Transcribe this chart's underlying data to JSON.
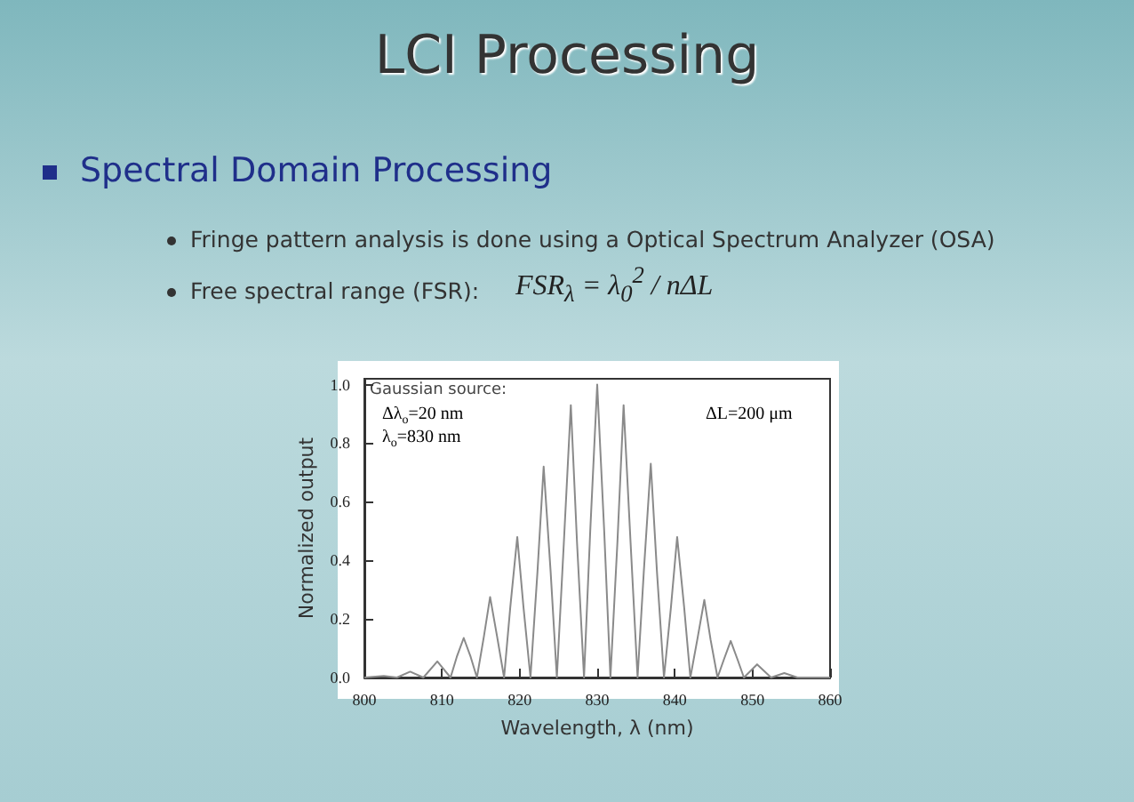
{
  "chart_data": {
    "type": "line",
    "title": "LCI Processing",
    "subtitle": "Spectral Domain Processing",
    "annotations": [
      "Fringe pattern analysis is done using a Optical Spectrum Analyzer (OSA)",
      "Free spectral range (FSR):",
      "FSR$_{λ}$ = λ$_{0}$$^{2}$ / nΔL",
      "Gaussian source:",
      "Δλ$_{o}$=20 nm",
      "λ$_{o}$=830 nm",
      "ΔL=200 μm"
    ],
    "xlabel": "Wavelength, λ (nm)",
    "ylabel": "Normalized output",
    "xlim": [
      800,
      860
    ],
    "xticks": [
      800,
      810,
      820,
      830,
      840,
      850,
      860
    ],
    "ylim": [
      0,
      1.02
    ],
    "yticks": [
      {
        "value": 0,
        "label": "0.0"
      },
      {
        "value": 0.2,
        "label": "0.2"
      },
      {
        "value": 0.4,
        "label": "0.4"
      },
      {
        "value": 0.6,
        "label": "0.6"
      },
      {
        "value": 0.8,
        "label": "0.8"
      },
      {
        "value": 1,
        "label": "1.0"
      }
    ],
    "grid": false,
    "marker": "none",
    "line_style": "solid",
    "series": [
      {
        "color": "#8a8a8a",
        "x": [
          800,
          802.5,
          804.2,
          805.9,
          807.6,
          809.4,
          811.1,
          811.9,
          812.8,
          813.7,
          814.5,
          815.4,
          816.2,
          817.1,
          818.0,
          818.8,
          819.7,
          820.5,
          821.4,
          822.3,
          823.1,
          824.0,
          824.8,
          825.7,
          826.6,
          827.4,
          828.3,
          829.1,
          830.0,
          830.9,
          831.7,
          832.6,
          833.4,
          834.3,
          835.2,
          836.0,
          836.9,
          837.7,
          838.6,
          839.5,
          840.3,
          841.2,
          842.0,
          842.9,
          843.8,
          844.6,
          845.5,
          846.3,
          847.2,
          848.1,
          848.9,
          850.6,
          852.4,
          854.1,
          855.8,
          860
        ],
        "values": [
          0,
          0.005,
          0,
          0.02,
          0,
          0.055,
          0,
          0.07,
          0.135,
          0.07,
          0,
          0.14,
          0.275,
          0.14,
          0,
          0.24,
          0.48,
          0.24,
          0,
          0.36,
          0.72,
          0.36,
          0,
          0.46,
          0.93,
          0.46,
          0,
          0.5,
          1.0,
          0.5,
          0,
          0.46,
          0.93,
          0.46,
          0,
          0.36,
          0.73,
          0.36,
          0,
          0.24,
          0.48,
          0.24,
          0,
          0.13,
          0.265,
          0.13,
          0,
          0.06,
          0.125,
          0.06,
          0,
          0.045,
          0,
          0.015,
          0,
          0
        ]
      }
    ]
  }
}
